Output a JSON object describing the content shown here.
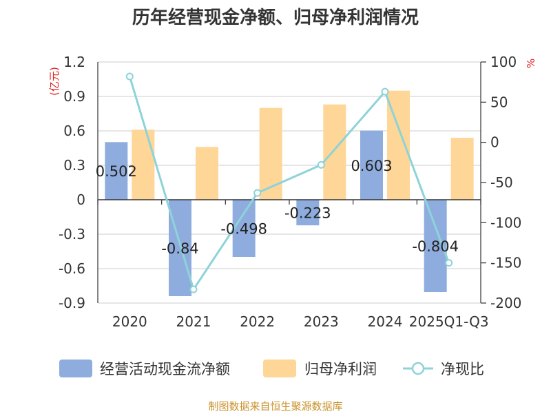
{
  "chart_data": {
    "type": "bar",
    "title": "历年经营现金净额、归母净利润情况",
    "categories": [
      "2020",
      "2021",
      "2022",
      "2023",
      "2024",
      "2025Q1-Q3"
    ],
    "series": [
      {
        "name": "经营活动现金流净额",
        "type": "bar",
        "axis": "left",
        "color": "#8eadde",
        "values": [
          0.502,
          -0.84,
          -0.498,
          -0.223,
          0.603,
          -0.804
        ],
        "labels": [
          "0.502",
          "-0.84",
          "-0.498",
          "-0.223",
          "0.603",
          "-0.804"
        ]
      },
      {
        "name": "归母净利润",
        "type": "bar",
        "axis": "left",
        "color": "#fed698",
        "values": [
          0.61,
          0.46,
          0.8,
          0.83,
          0.95,
          0.54
        ]
      },
      {
        "name": "净现比",
        "type": "line",
        "axis": "right",
        "color": "#8dd3d8",
        "values": [
          82,
          -183,
          -63,
          -28,
          63,
          -150
        ]
      }
    ],
    "y_left": {
      "unit": "(亿元)",
      "min": -0.9,
      "max": 1.2,
      "ticks": [
        1.2,
        0.9,
        0.6,
        0.3,
        0,
        -0.3,
        -0.6,
        -0.9
      ],
      "tick_labels": [
        "1.2",
        "0.9",
        "0.6",
        "0.3",
        "0",
        "-0.3",
        "-0.6",
        "-0.9"
      ]
    },
    "y_right": {
      "unit": "%",
      "min": -200,
      "max": 100,
      "ticks": [
        100,
        50,
        0,
        -50,
        -100,
        -150,
        -200
      ],
      "tick_labels": [
        "100",
        "50",
        "0",
        "-50",
        "-100",
        "-150",
        "-200"
      ]
    },
    "grid": true,
    "legend_position": "bottom"
  },
  "source": "制图数据来自恒生聚源数据库"
}
